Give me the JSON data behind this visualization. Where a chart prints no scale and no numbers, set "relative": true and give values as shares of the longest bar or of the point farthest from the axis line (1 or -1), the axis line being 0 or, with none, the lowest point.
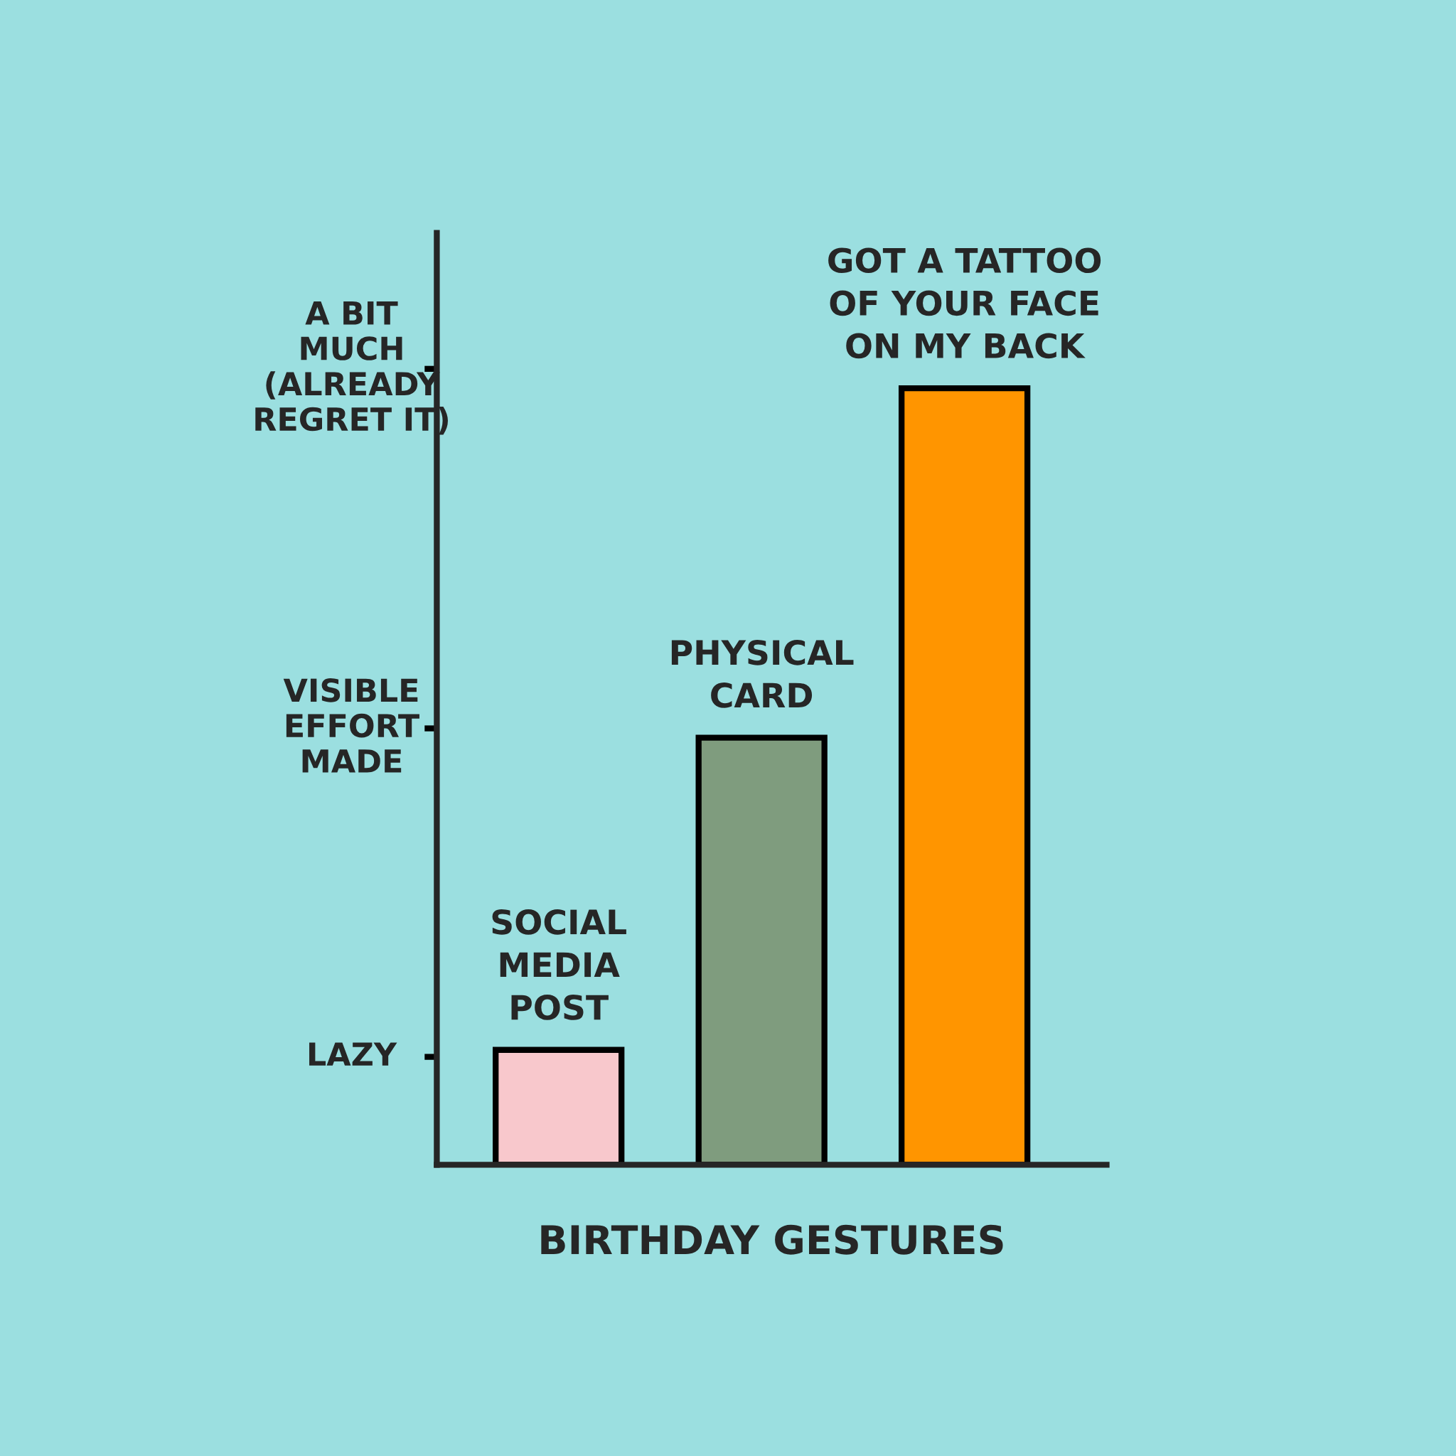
{
  "chart_data": {
    "type": "bar",
    "xlabel": "BIRTHDAY GESTURES",
    "categories": [
      "SOCIAL\nMEDIA\nPOST",
      "PHYSICAL\nCARD",
      "GOT A TATTOO\nOF YOUR FACE\nON MY BACK"
    ],
    "values": [
      0.148,
      0.55,
      1.0
    ],
    "colors": [
      "#f8c8cc",
      "#7f9c7e",
      "#ff9500"
    ],
    "relative": true,
    "ref_lines": [
      {
        "axis": "y",
        "value": 0.139,
        "label": "LAZY"
      },
      {
        "axis": "y",
        "value": 0.562,
        "label": "VISIBLE\nEFFORT\nMADE"
      },
      {
        "axis": "y",
        "value": 1.025,
        "label": "A BIT\nMUCH\n(ALREADY\nREGRET IT)"
      }
    ],
    "legend": false
  }
}
